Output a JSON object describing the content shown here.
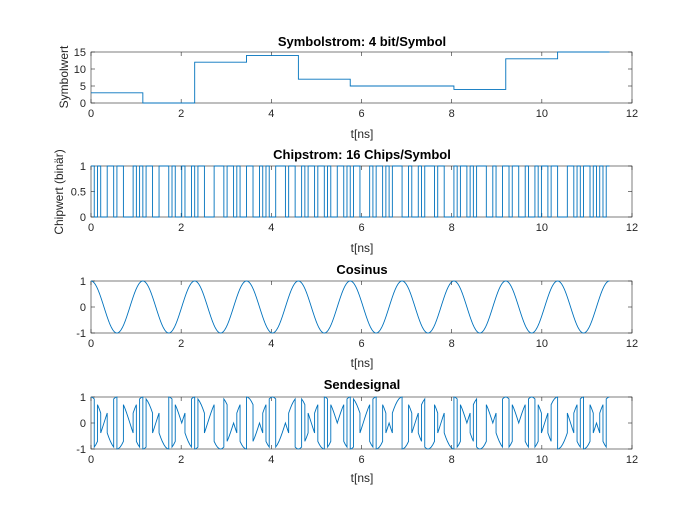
{
  "figure": {
    "background": "#ffffff",
    "line_color": "#0072BD"
  },
  "chart_data": [
    {
      "id": "symbol",
      "type": "line",
      "step": true,
      "title": "Symbolstrom: 4 bit/Symbol",
      "xlabel": "t[ns]",
      "ylabel": "Symbolwert",
      "xlim": [
        0,
        12
      ],
      "ylim": [
        0,
        15
      ],
      "xticks": [
        0,
        2,
        4,
        6,
        8,
        10,
        12
      ],
      "yticks": [
        0,
        5,
        10,
        15
      ],
      "symbol_duration_ns": 1.15,
      "symbol_values": [
        3,
        0,
        12,
        14,
        7,
        5,
        5,
        4,
        13,
        15
      ]
    },
    {
      "id": "chip",
      "type": "line",
      "step": true,
      "title": "Chipstrom: 16 Chips/Symbol",
      "xlabel": "t[ns]",
      "ylabel": "Chipwert (binär)",
      "xlim": [
        0,
        12
      ],
      "ylim": [
        0,
        1
      ],
      "xticks": [
        0,
        2,
        4,
        6,
        8,
        10,
        12
      ],
      "yticks": [
        0,
        0.5,
        1
      ],
      "chip_duration_ns": 0.071875,
      "chip_bits": "1010011011000101011001110100100101100011101101001100101001110110010110110100110101100010110101110010010111011000101101011100100110110010010110110001101011010101"
    },
    {
      "id": "cos",
      "type": "line",
      "title": "Cosinus",
      "xlabel": "t[ns]",
      "ylabel": "",
      "xlim": [
        0,
        12
      ],
      "ylim": [
        -1,
        1
      ],
      "xticks": [
        0,
        2,
        4,
        6,
        8,
        10,
        12
      ],
      "yticks": [
        -1,
        0,
        1
      ],
      "period_ns": 1.15,
      "x_end": 11.5
    },
    {
      "id": "send",
      "type": "line",
      "title": "Sendesignal",
      "xlabel": "t[ns]",
      "ylabel": "",
      "xlim": [
        0,
        12
      ],
      "ylim": [
        -1,
        1
      ],
      "xticks": [
        0,
        2,
        4,
        6,
        8,
        10,
        12
      ],
      "yticks": [
        -1,
        0,
        1
      ],
      "period_ns": 1.15,
      "chip_duration_ns": 0.071875,
      "x_end": 11.5,
      "formula": "cos(2*pi*t/period) * (2*chip - 1)"
    }
  ]
}
